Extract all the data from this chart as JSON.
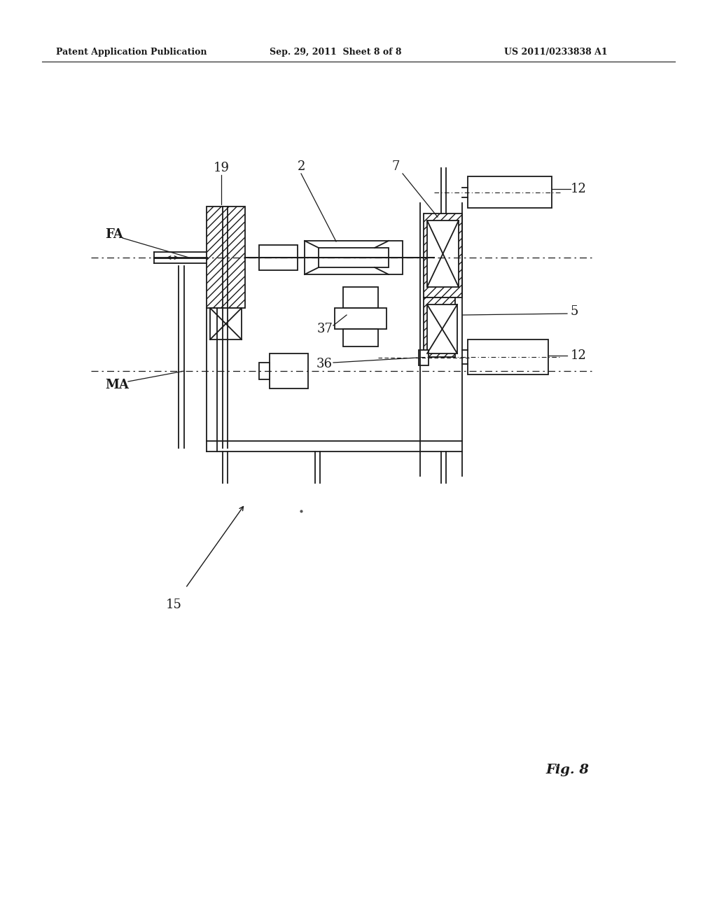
{
  "bg_color": "#ffffff",
  "header_text": "Patent Application Publication",
  "header_date": "Sep. 29, 2011  Sheet 8 of 8",
  "header_patent": "US 2011/0233838 A1",
  "fig_label": "Fig. 8"
}
